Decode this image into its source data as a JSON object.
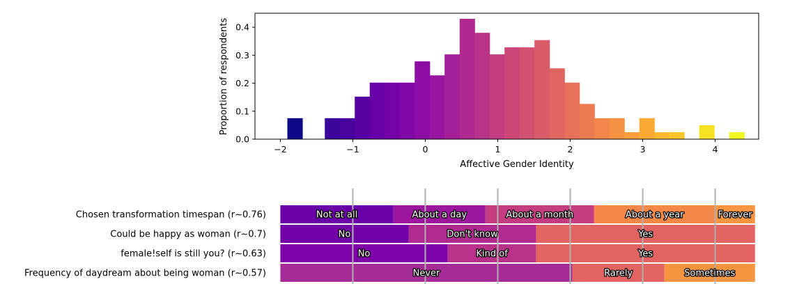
{
  "chart_data": [
    {
      "type": "bar",
      "subtype": "histogram",
      "xlabel": "Affective Gender Identity",
      "ylabel": "Proportion of respondents",
      "xlim": [
        -2.35,
        4.6
      ],
      "ylim": [
        0,
        0.45
      ],
      "xticks": [
        -2,
        -1,
        0,
        1,
        2,
        3,
        4
      ],
      "xtick_labels": [
        "−2",
        "−1",
        "0",
        "1",
        "2",
        "3",
        "4"
      ],
      "yticks": [
        0.0,
        0.1,
        0.2,
        0.3,
        0.4
      ],
      "ytick_labels": [
        "0.0",
        "0.1",
        "0.2",
        "0.3",
        "0.4"
      ],
      "colormap": "plasma",
      "color_range": [
        -1.8,
        4.2
      ],
      "bin_width": 0.2068,
      "bins": [
        {
          "x": -1.8,
          "value": 0.075
        },
        {
          "x": -1.283,
          "value": 0.075
        },
        {
          "x": -1.077,
          "value": 0.075
        },
        {
          "x": -0.87,
          "value": 0.152
        },
        {
          "x": -0.663,
          "value": 0.202
        },
        {
          "x": -0.457,
          "value": 0.202
        },
        {
          "x": -0.25,
          "value": 0.202
        },
        {
          "x": -0.043,
          "value": 0.278
        },
        {
          "x": 0.163,
          "value": 0.228
        },
        {
          "x": 0.37,
          "value": 0.303
        },
        {
          "x": 0.577,
          "value": 0.43
        },
        {
          "x": 0.783,
          "value": 0.38
        },
        {
          "x": 0.99,
          "value": 0.303
        },
        {
          "x": 1.197,
          "value": 0.328
        },
        {
          "x": 1.403,
          "value": 0.328
        },
        {
          "x": 1.61,
          "value": 0.354
        },
        {
          "x": 1.817,
          "value": 0.253
        },
        {
          "x": 2.023,
          "value": 0.202
        },
        {
          "x": 2.23,
          "value": 0.126
        },
        {
          "x": 2.437,
          "value": 0.075
        },
        {
          "x": 2.643,
          "value": 0.075
        },
        {
          "x": 2.85,
          "value": 0.025
        },
        {
          "x": 3.057,
          "value": 0.075
        },
        {
          "x": 3.263,
          "value": 0.025
        },
        {
          "x": 3.47,
          "value": 0.025
        },
        {
          "x": 3.883,
          "value": 0.05
        },
        {
          "x": 4.297,
          "value": 0.025
        }
      ]
    },
    {
      "type": "bar",
      "subtype": "stacked-horizontal-100",
      "xlim": [
        -2.35,
        4.6
      ],
      "gridlines_x": [
        -1,
        0,
        1,
        2,
        3,
        4
      ],
      "rows": [
        {
          "label": "Chosen transformation timespan (r~0.76)",
          "segments": [
            {
              "label": "Not at all",
              "start": -2.0,
              "end": -0.44,
              "color": "#6a00a8"
            },
            {
              "label": "About a day",
              "start": -0.44,
              "end": 0.83,
              "color": "#9c179e"
            },
            {
              "label": "About a month",
              "start": 0.83,
              "end": 2.33,
              "color": "#c33d80"
            },
            {
              "label": "About a year",
              "start": 2.33,
              "end": 4.0,
              "color": "#f48849"
            },
            {
              "label": "Forever",
              "start": 4.0,
              "end": 4.55,
              "color": "#f89540"
            }
          ]
        },
        {
          "label": "Could be happy as woman (r~0.7)",
          "segments": [
            {
              "label": "No",
              "start": -2.0,
              "end": -0.23,
              "color": "#7201a8"
            },
            {
              "label": "Don't know",
              "start": -0.23,
              "end": 1.53,
              "color": "#b12a90"
            },
            {
              "label": "Yes",
              "start": 1.53,
              "end": 4.55,
              "color": "#e16462"
            }
          ]
        },
        {
          "label": "female!self is still you? (r~0.63)",
          "segments": [
            {
              "label": "No",
              "start": -2.0,
              "end": 0.31,
              "color": "#7e03a8"
            },
            {
              "label": "Kind of",
              "start": 0.31,
              "end": 1.53,
              "color": "#b83289"
            },
            {
              "label": "Yes",
              "start": 1.53,
              "end": 4.55,
              "color": "#e16462"
            }
          ]
        },
        {
          "label": "Frequency of daydream about being woman (r~0.57)",
          "segments": [
            {
              "label": "Never",
              "start": -2.0,
              "end": 2.03,
              "color": "#a52c96"
            },
            {
              "label": "Rarely",
              "start": 2.03,
              "end": 3.3,
              "color": "#e16462"
            },
            {
              "label": "Sometimes",
              "start": 3.3,
              "end": 4.55,
              "color": "#f89540"
            }
          ]
        }
      ]
    }
  ]
}
